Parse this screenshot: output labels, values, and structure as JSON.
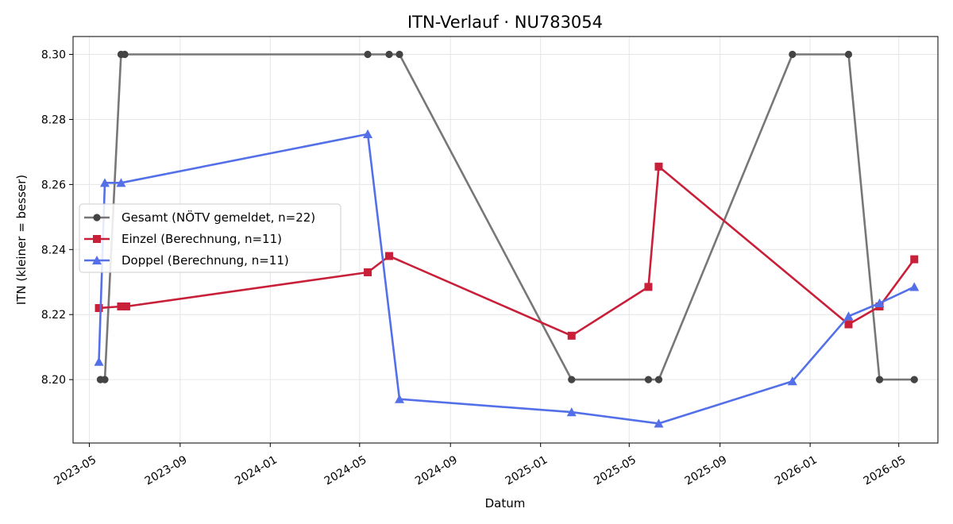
{
  "chart_data": {
    "type": "line",
    "title": "ITN-Verlauf · NU783054",
    "xlabel": "Datum",
    "ylabel": "ITN  (kleiner = besser)",
    "ylim": [
      8.1805,
      8.3055
    ],
    "xlim": [
      "2023-04-09",
      "2026-06-23"
    ],
    "grid": true,
    "legend_position": "center-left",
    "x_ticks": [
      "2023-05",
      "2023-09",
      "2024-01",
      "2024-05",
      "2024-09",
      "2025-01",
      "2025-05",
      "2025-09",
      "2026-01",
      "2026-05"
    ],
    "x_tick_dates": [
      "2023-05-01",
      "2023-09-01",
      "2024-01-01",
      "2024-05-01",
      "2024-09-01",
      "2025-01-01",
      "2025-05-01",
      "2025-09-01",
      "2026-01-01",
      "2026-05-01"
    ],
    "y_ticks": [
      "8.20",
      "8.22",
      "8.24",
      "8.26",
      "8.28",
      "8.30"
    ],
    "y_tick_values": [
      8.2,
      8.22,
      8.24,
      8.26,
      8.28,
      8.3
    ],
    "series": [
      {
        "name": "Gesamt (NÖTV gemeldet, n=22)",
        "color": "#777777",
        "marker_color": "#444444",
        "marker": "circle",
        "x": [
          "2023-05-16",
          "2023-05-22",
          "2023-06-13",
          "2023-06-18",
          "2024-05-12",
          "2024-06-10",
          "2024-06-24",
          "2025-02-12",
          "2025-05-27",
          "2025-06-10",
          "2025-12-08",
          "2026-02-22",
          "2026-04-05",
          "2026-05-22"
        ],
        "y": [
          8.2,
          8.2,
          8.3,
          8.3,
          8.3,
          8.3,
          8.3,
          8.2,
          8.2,
          8.2,
          8.3,
          8.3,
          8.2,
          8.2
        ]
      },
      {
        "name": "Einzel (Berechnung, n=11)",
        "color": "#c9203a",
        "marker_color": "#c9203a",
        "marker": "square",
        "x": [
          "2023-05-14",
          "2023-06-13",
          "2023-06-20",
          "2024-05-12",
          "2024-06-10",
          "2025-02-12",
          "2025-05-27",
          "2025-06-10",
          "2026-02-22",
          "2026-04-05",
          "2026-05-22"
        ],
        "y": [
          8.222,
          8.2225,
          8.2225,
          8.233,
          8.238,
          8.2135,
          8.2285,
          8.2655,
          8.217,
          8.2225,
          8.237
        ]
      },
      {
        "name": "Doppel (Berechnung, n=11)",
        "color": "#5470e8",
        "marker_color": "#5470e8",
        "marker": "triangle",
        "x": [
          "2023-05-14",
          "2023-05-22",
          "2023-06-13",
          "2024-05-12",
          "2024-06-24",
          "2025-02-12",
          "2025-06-10",
          "2025-12-08",
          "2026-02-22",
          "2026-04-05",
          "2026-05-22"
        ],
        "y": [
          8.2055,
          8.2605,
          8.2605,
          8.2755,
          8.194,
          8.19,
          8.1865,
          8.1995,
          8.2195,
          8.2235,
          8.2285
        ]
      }
    ]
  }
}
